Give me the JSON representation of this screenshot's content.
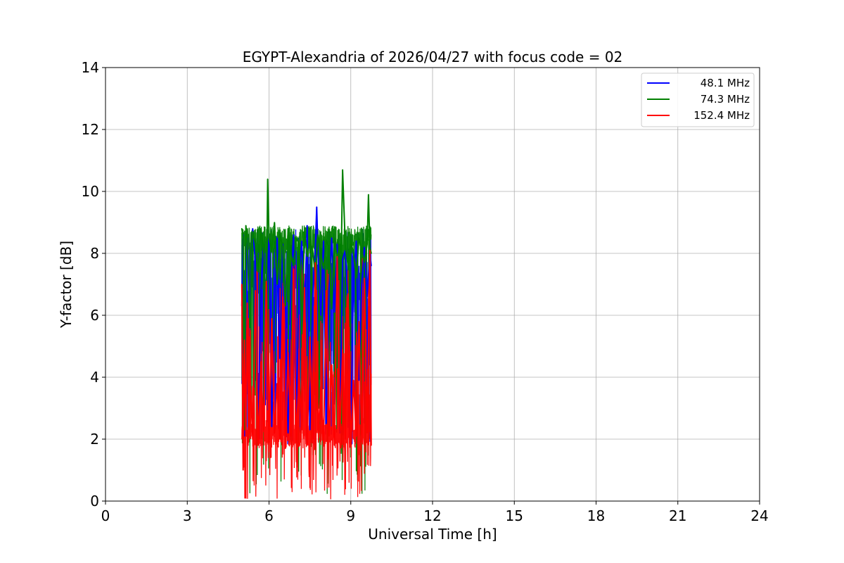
{
  "chart_data": {
    "type": "line",
    "title": "EGYPT-Alexandria of 2026/04/27 with focus code = 02",
    "xlabel": "Universal Time [h]",
    "ylabel": "Y-factor [dB]",
    "xlim": [
      0,
      24
    ],
    "ylim": [
      0,
      14
    ],
    "xticks": [
      0,
      3,
      6,
      9,
      12,
      15,
      18,
      21,
      24
    ],
    "yticks": [
      0,
      2,
      4,
      6,
      8,
      10,
      12,
      14
    ],
    "grid": true,
    "legend_position": "top-right",
    "series": [
      {
        "name": "48.1 MHz",
        "color": "#0000ff",
        "x": [
          5.0,
          5.05,
          5.1,
          5.15,
          5.2,
          5.3,
          5.4,
          5.5,
          5.6,
          5.7,
          5.8,
          5.9,
          6.0,
          6.1,
          6.2,
          6.3,
          6.4,
          6.5,
          6.6,
          6.7,
          6.8,
          6.9,
          7.0,
          7.1,
          7.2,
          7.3,
          7.4,
          7.5,
          7.6,
          7.7,
          7.75,
          7.8,
          7.9,
          8.0,
          8.1,
          8.2,
          8.3,
          8.4,
          8.5,
          8.6,
          8.7,
          8.8,
          8.9,
          9.0,
          9.1,
          9.2,
          9.3,
          9.4,
          9.5,
          9.6,
          9.7,
          9.75
        ],
        "values": [
          6.3,
          8.6,
          2.1,
          7.1,
          8.5,
          6.2,
          8.8,
          7.7,
          2.3,
          6.8,
          8.2,
          6.0,
          8.6,
          2.4,
          6.4,
          8.5,
          4.6,
          8.3,
          6.5,
          2.2,
          6.9,
          8.6,
          2.6,
          7.1,
          8.4,
          6.2,
          8.9,
          2.3,
          6.6,
          8.2,
          9.5,
          7.9,
          6.0,
          8.4,
          2.5,
          6.8,
          8.5,
          6.1,
          8.3,
          2.2,
          7.8,
          8.1,
          6.3,
          2.4,
          7.2,
          8.4,
          3.9,
          7.0,
          8.2,
          6.6,
          8.0,
          7.6
        ]
      },
      {
        "name": "74.3 MHz",
        "color": "#008000",
        "x": [
          5.0,
          5.05,
          5.1,
          5.15,
          5.2,
          5.3,
          5.4,
          5.5,
          5.6,
          5.7,
          5.8,
          5.9,
          5.95,
          6.0,
          6.1,
          6.2,
          6.3,
          6.4,
          6.5,
          6.6,
          6.7,
          6.8,
          6.9,
          7.0,
          7.1,
          7.2,
          7.3,
          7.4,
          7.5,
          7.6,
          7.7,
          7.8,
          7.9,
          8.0,
          8.1,
          8.2,
          8.3,
          8.4,
          8.5,
          8.6,
          8.65,
          8.7,
          8.8,
          8.9,
          9.0,
          9.1,
          9.2,
          9.3,
          9.4,
          9.5,
          9.6,
          9.65,
          9.7,
          9.75
        ],
        "values": [
          8.8,
          8.5,
          2.3,
          8.9,
          8.4,
          5.6,
          8.7,
          8.3,
          7.4,
          8.8,
          8.2,
          6.1,
          10.4,
          8.5,
          8.1,
          9.0,
          7.0,
          8.6,
          8.2,
          6.3,
          8.8,
          8.0,
          7.6,
          8.5,
          8.3,
          5.4,
          8.7,
          7.9,
          8.4,
          8.1,
          7.3,
          8.6,
          8.0,
          7.5,
          8.4,
          8.2,
          6.2,
          8.5,
          7.8,
          8.3,
          8.0,
          10.7,
          8.2,
          7.6,
          8.4,
          8.0,
          7.2,
          8.5,
          8.1,
          7.7,
          8.3,
          9.9,
          8.2,
          8.0
        ]
      },
      {
        "name": "152.4 MHz",
        "color": "#ff0000",
        "x": [
          5.0,
          5.05,
          5.1,
          5.15,
          5.2,
          5.25,
          5.3,
          5.4,
          5.5,
          5.6,
          5.7,
          5.8,
          5.9,
          6.0,
          6.1,
          6.2,
          6.3,
          6.4,
          6.5,
          6.6,
          6.7,
          6.8,
          6.9,
          7.0,
          7.1,
          7.2,
          7.3,
          7.4,
          7.5,
          7.6,
          7.7,
          7.8,
          7.9,
          8.0,
          8.1,
          8.2,
          8.3,
          8.4,
          8.5,
          8.6,
          8.7,
          8.8,
          8.9,
          9.0,
          9.1,
          9.2,
          9.3,
          9.4,
          9.5,
          9.6,
          9.7,
          9.75
        ],
        "values": [
          7.0,
          1.0,
          5.2,
          2.1,
          6.4,
          1.9,
          4.1,
          2.0,
          6.8,
          1.8,
          4.5,
          2.3,
          7.1,
          1.9,
          5.9,
          2.2,
          3.8,
          2.0,
          6.6,
          1.7,
          4.8,
          2.1,
          7.5,
          1.9,
          4.2,
          2.3,
          6.9,
          1.8,
          5.3,
          2.0,
          7.7,
          2.2,
          3.6,
          1.9,
          6.8,
          2.1,
          4.4,
          1.8,
          7.9,
          2.2,
          4.9,
          2.0,
          6.7,
          1.8,
          3.9,
          2.1,
          5.8,
          1.9,
          7.2,
          2.2,
          8.1,
          1.8
        ]
      }
    ]
  }
}
